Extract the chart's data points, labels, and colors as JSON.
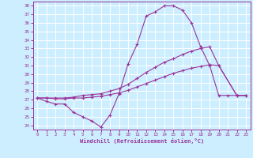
{
  "xlabel": "Windchill (Refroidissement éolien,°C)",
  "ylabel": "",
  "xlim": [
    -0.5,
    23.5
  ],
  "ylim": [
    23.5,
    38.5
  ],
  "yticks": [
    24,
    25,
    26,
    27,
    28,
    29,
    30,
    31,
    32,
    33,
    34,
    35,
    36,
    37,
    38
  ],
  "xticks": [
    0,
    1,
    2,
    3,
    4,
    5,
    6,
    7,
    8,
    9,
    10,
    11,
    12,
    13,
    14,
    15,
    16,
    17,
    18,
    19,
    20,
    21,
    22,
    23
  ],
  "background_color": "#cceeff",
  "grid_color": "#ffffff",
  "line_color": "#993399",
  "line1_x": [
    0,
    1,
    2,
    3,
    4,
    5,
    6,
    7,
    8,
    9,
    10,
    11,
    12,
    13,
    14,
    15,
    16,
    17,
    18,
    19,
    20,
    21,
    22,
    23
  ],
  "line1_y": [
    27.2,
    26.8,
    26.5,
    26.5,
    25.5,
    25.0,
    24.5,
    23.8,
    25.2,
    27.7,
    31.2,
    33.5,
    36.8,
    37.3,
    38.0,
    38.0,
    37.5,
    36.0,
    33.2,
    31.0,
    27.5,
    27.5,
    27.5,
    27.5
  ],
  "line2_x": [
    0,
    1,
    2,
    3,
    4,
    5,
    6,
    7,
    8,
    9,
    10,
    11,
    12,
    13,
    14,
    15,
    16,
    17,
    18,
    19,
    20,
    22,
    23
  ],
  "line2_y": [
    27.2,
    27.2,
    27.2,
    27.2,
    27.3,
    27.5,
    27.6,
    27.7,
    28.0,
    28.3,
    28.8,
    29.5,
    30.2,
    30.8,
    31.4,
    31.8,
    32.3,
    32.7,
    33.0,
    33.2,
    31.0,
    27.5,
    27.5
  ],
  "line3_x": [
    0,
    1,
    2,
    3,
    4,
    5,
    6,
    7,
    8,
    9,
    10,
    11,
    12,
    13,
    14,
    15,
    16,
    17,
    18,
    19,
    20,
    22,
    23
  ],
  "line3_y": [
    27.2,
    27.2,
    27.1,
    27.1,
    27.2,
    27.2,
    27.3,
    27.4,
    27.6,
    27.8,
    28.1,
    28.5,
    28.9,
    29.3,
    29.7,
    30.1,
    30.4,
    30.7,
    30.9,
    31.1,
    31.0,
    27.5,
    27.5
  ]
}
